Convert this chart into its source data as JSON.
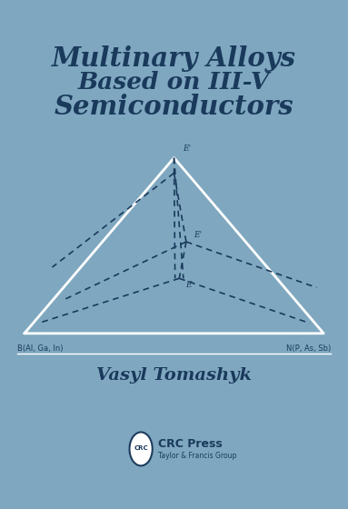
{
  "bg_color": "#7fa8c0",
  "title_line1": "Multinary Alloys",
  "title_line2": "Based on III-V",
  "title_line3": "Semiconductors",
  "title_color": "#1a3a5c",
  "author": "Vasyl Tomashyk",
  "author_color": "#1a3a5c",
  "publisher": "CRC Press",
  "publisher_sub": "Taylor & Francis Group",
  "triangle_color": "white",
  "dashed_color": "#1a3a5c",
  "label_left": "B(Al, Ga, In)",
  "label_right": "N(P, As, Sb)",
  "label_top": "E'",
  "label_mid": "E'",
  "label_bot": "E",
  "label_color": "#1a3a5c",
  "triangle_lw": 2.0,
  "dashed_lw": 1.2
}
